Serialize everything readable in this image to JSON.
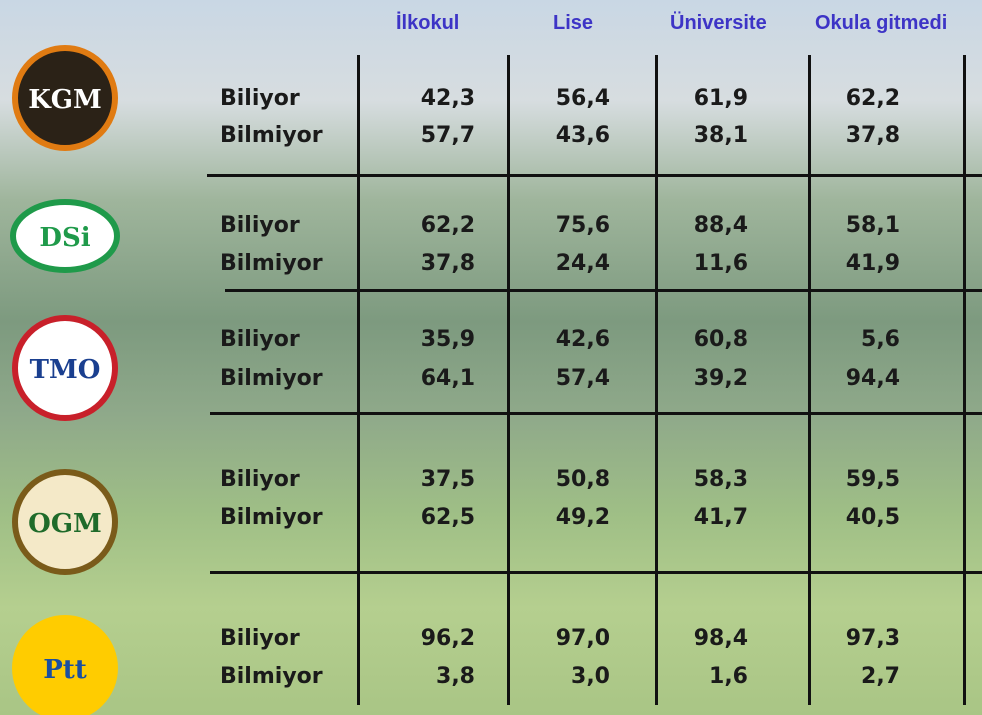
{
  "header": {
    "columns": [
      "İlkokul",
      "Lise",
      "Üniversite",
      "Okula gitmedi"
    ]
  },
  "groups": [
    {
      "logo": "KGM",
      "rows": [
        {
          "label": "Biliyor",
          "values": [
            "42,3",
            "56,4",
            "61,9",
            "62,2"
          ]
        },
        {
          "label": "Bilmiyor",
          "values": [
            "57,7",
            "43,6",
            "38,1",
            "37,8"
          ]
        }
      ]
    },
    {
      "logo": "DSi",
      "rows": [
        {
          "label": "Biliyor",
          "values": [
            "62,2",
            "75,6",
            "88,4",
            "58,1"
          ]
        },
        {
          "label": "Bilmiyor",
          "values": [
            "37,8",
            "24,4",
            "11,6",
            "41,9"
          ]
        }
      ]
    },
    {
      "logo": "TMO",
      "rows": [
        {
          "label": "Biliyor",
          "values": [
            "35,9",
            "42,6",
            "60,8",
            "5,6"
          ]
        },
        {
          "label": "Bilmiyor",
          "values": [
            "64,1",
            "57,4",
            "39,2",
            "94,4"
          ]
        }
      ]
    },
    {
      "logo": "OGM",
      "rows": [
        {
          "label": "Biliyor",
          "values": [
            "37,5",
            "50,8",
            "58,3",
            "59,5"
          ]
        },
        {
          "label": "Bilmiyor",
          "values": [
            "62,5",
            "49,2",
            "41,7",
            "40,5"
          ]
        }
      ]
    },
    {
      "logo": "Ptt",
      "rows": [
        {
          "label": "Biliyor",
          "values": [
            "96,2",
            "97,0",
            "98,4",
            "97,3"
          ]
        },
        {
          "label": "Bilmiyor",
          "values": [
            "3,8",
            "3,0",
            "1,6",
            "2,7"
          ]
        }
      ]
    }
  ]
}
